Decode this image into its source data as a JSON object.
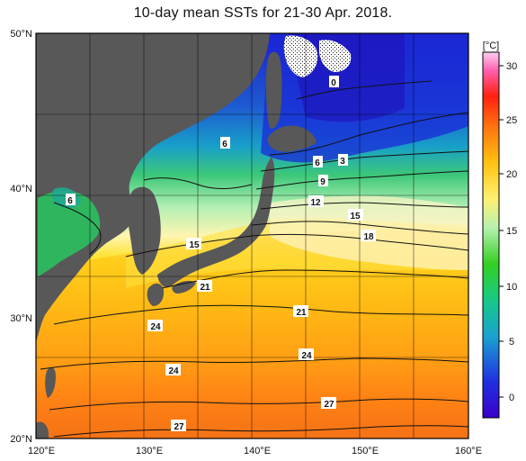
{
  "title": "10-day mean SSTs for 21-30 Apr. 2018.",
  "axes": {
    "lat_labels": [
      "50°N",
      "40°N",
      "30°N",
      "20°N"
    ],
    "lon_labels": [
      "120°E",
      "130°E",
      "140°E",
      "150°E",
      "160°E"
    ]
  },
  "colorbar": {
    "unit": "[°C]",
    "ticks": [
      "30",
      "25",
      "20",
      "15",
      "10",
      "5",
      "0"
    ]
  },
  "contour_labels": [
    "0",
    "6",
    "6",
    "3",
    "6",
    "9",
    "12",
    "15",
    "18",
    "15",
    "21",
    "21",
    "24",
    "24",
    "24",
    "27",
    "27"
  ],
  "colors": {
    "land": "#5a5a5a",
    "sea_ice": "#ffffff"
  }
}
